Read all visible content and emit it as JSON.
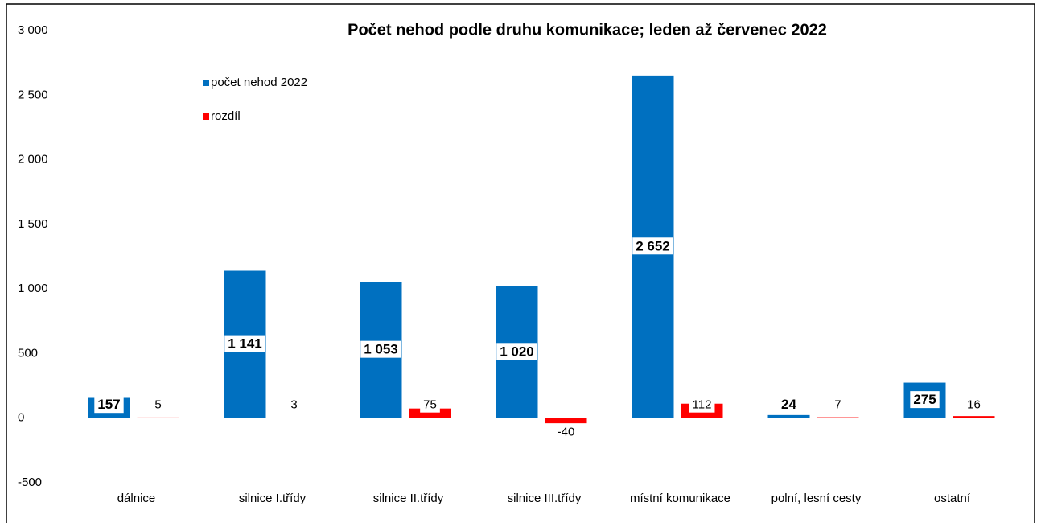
{
  "chart_data": {
    "type": "bar",
    "title": "Počet nehod podle druhu komunikace; leden až červenec 2022",
    "categories": [
      "dálnice",
      "silnice I.třídy",
      "silnice II.třídy",
      "silnice III.třídy",
      "místní komunikace",
      "polní, lesní cesty",
      "ostatní"
    ],
    "series": [
      {
        "name": "počet nehod 2022",
        "color": "#0070c0",
        "values": [
          157,
          1141,
          1053,
          1020,
          2652,
          24,
          275
        ],
        "value_labels": [
          "157",
          "1 141",
          "1 053",
          "1 020",
          "2 652",
          "24",
          "275"
        ]
      },
      {
        "name": "rozdíl",
        "color": "#ff0000",
        "values": [
          5,
          3,
          75,
          -40,
          112,
          7,
          16
        ]
      }
    ],
    "ylim": [
      -500,
      3000
    ],
    "yticks": [
      -500,
      0,
      500,
      {
        "value": 1000,
        "label": "1 000"
      },
      {
        "value": 1500,
        "label": "1 500"
      },
      {
        "value": 2000,
        "label": "2 000"
      },
      {
        "value": 2500,
        "label": "2 500"
      },
      {
        "value": 3000,
        "label": "3 000"
      }
    ],
    "legend": "top-left"
  }
}
